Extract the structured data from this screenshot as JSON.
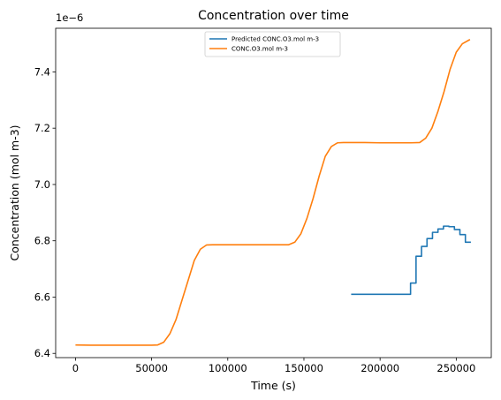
{
  "chart_data": {
    "type": "line",
    "title": "Concentration over time",
    "xlabel": "Time (s)",
    "ylabel": "Concentration (mol m-3)",
    "offset_text": "1e−6",
    "xlim": [
      -13000,
      273000
    ],
    "ylim": [
      6.385,
      7.555
    ],
    "xticks": [
      0,
      50000,
      100000,
      150000,
      200000,
      250000
    ],
    "xtick_labels": [
      "0",
      "50000",
      "100000",
      "150000",
      "200000",
      "250000"
    ],
    "yticks": [
      6.4,
      6.6,
      6.8,
      7.0,
      7.2,
      7.4
    ],
    "ytick_labels": [
      "6.4",
      "6.6",
      "6.8",
      "7.0",
      "7.2",
      "7.4"
    ],
    "grid": false,
    "legend_position": "top-center",
    "series": [
      {
        "name": "Predicted CONC.O3.mol m-3",
        "color": "#1f77b4",
        "step": true,
        "x": [
          181000,
          220000,
          223600,
          227200,
          230800,
          234400,
          238000,
          241600,
          245200,
          248800,
          252400,
          256000,
          259600
        ],
        "y": [
          6.61,
          6.65,
          6.745,
          6.78,
          6.808,
          6.83,
          6.842,
          6.852,
          6.85,
          6.84,
          6.822,
          6.795,
          6.795
        ]
      },
      {
        "name": "CONC.O3.mol m-3",
        "color": "#ff7f0e",
        "step": false,
        "x": [
          0,
          10000,
          20000,
          30000,
          40000,
          50000,
          54000,
          58000,
          62000,
          66000,
          70000,
          74000,
          78000,
          82000,
          86000,
          90000,
          100000,
          110000,
          120000,
          130000,
          140000,
          144000,
          148000,
          152000,
          156000,
          160000,
          164000,
          168000,
          172000,
          176000,
          180000,
          190000,
          200000,
          210000,
          220000,
          226000,
          230000,
          234000,
          238000,
          242000,
          246000,
          250000,
          254000,
          259000
        ],
        "y": [
          6.43,
          6.429,
          6.429,
          6.429,
          6.429,
          6.429,
          6.43,
          6.44,
          6.47,
          6.52,
          6.59,
          6.66,
          6.73,
          6.77,
          6.785,
          6.786,
          6.786,
          6.786,
          6.786,
          6.786,
          6.786,
          6.795,
          6.825,
          6.88,
          6.95,
          7.03,
          7.1,
          7.135,
          7.148,
          7.149,
          7.149,
          7.149,
          7.148,
          7.148,
          7.148,
          7.149,
          7.165,
          7.2,
          7.26,
          7.33,
          7.41,
          7.47,
          7.5,
          7.515
        ]
      }
    ]
  }
}
